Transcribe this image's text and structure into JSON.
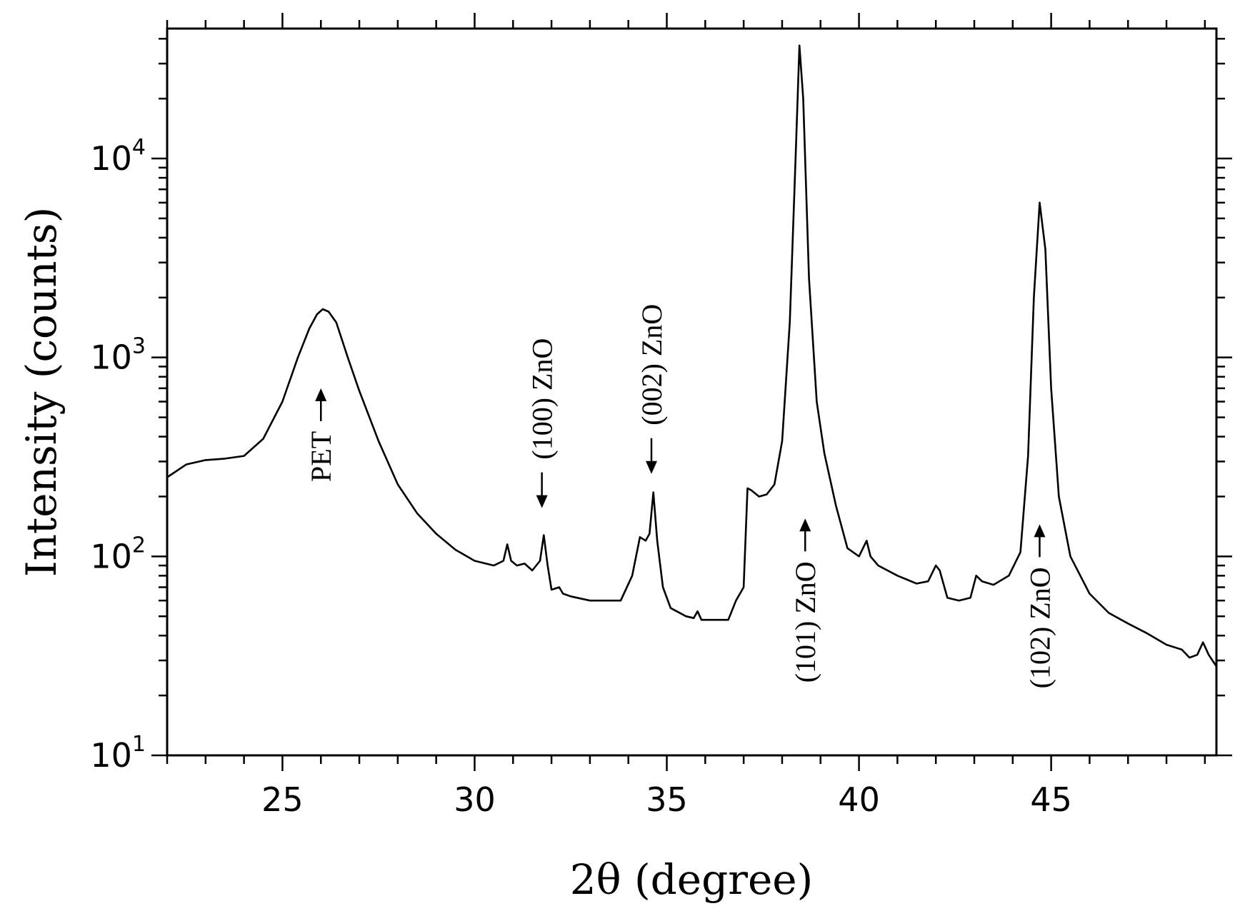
{
  "chart_data": {
    "type": "line",
    "xlabel": "2θ (degree)",
    "ylabel": "Intensity (counts)",
    "xlim": [
      22,
      49.3
    ],
    "ylim": [
      10,
      45000
    ],
    "yscale": "log",
    "grid": false,
    "x_ticks": [
      25,
      30,
      35,
      40,
      45
    ],
    "x_tick_labels": [
      "25",
      "30",
      "35",
      "40",
      "45"
    ],
    "y_ticks": [
      {
        "value": 10,
        "base": "10",
        "exp": "1"
      },
      {
        "value": 100,
        "base": "10",
        "exp": "2"
      },
      {
        "value": 1000,
        "base": "10",
        "exp": "3"
      },
      {
        "value": 10000,
        "base": "10",
        "exp": "4"
      }
    ],
    "line_color": "#000000",
    "series": [
      {
        "x": [
          22.0,
          22.5,
          23.0,
          23.5,
          24.0,
          24.5,
          25.0,
          25.4,
          25.7,
          25.9,
          26.05,
          26.2,
          26.4,
          26.7,
          27.0,
          27.5,
          28.0,
          28.5,
          29.0,
          29.5,
          30.0,
          30.5,
          30.75,
          30.85,
          30.95,
          31.1,
          31.3,
          31.5,
          31.7,
          31.8,
          31.9,
          32.0,
          32.2,
          32.3,
          32.5,
          33.0,
          33.5,
          33.8,
          34.1,
          34.3,
          34.45,
          34.55,
          34.65,
          34.75,
          34.9,
          35.1,
          35.5,
          35.7,
          35.8,
          35.9,
          36.2,
          36.6,
          36.8,
          37.0,
          37.1,
          37.2,
          37.4,
          37.6,
          37.8,
          38.0,
          38.2,
          38.35,
          38.45,
          38.55,
          38.7,
          38.9,
          39.1,
          39.4,
          39.7,
          40.0,
          40.2,
          40.3,
          40.5,
          41.0,
          41.5,
          41.8,
          42.0,
          42.1,
          42.3,
          42.6,
          42.9,
          43.05,
          43.2,
          43.5,
          43.9,
          44.2,
          44.4,
          44.55,
          44.7,
          44.85,
          45.0,
          45.2,
          45.5,
          46.0,
          46.5,
          47.0,
          47.5,
          48.0,
          48.4,
          48.6,
          48.8,
          48.95,
          49.1,
          49.3
        ],
        "values": [
          250,
          290,
          305,
          310,
          320,
          390,
          600,
          1000,
          1400,
          1650,
          1750,
          1700,
          1500,
          1000,
          680,
          380,
          230,
          165,
          130,
          108,
          95,
          90,
          95,
          115,
          95,
          90,
          92,
          85,
          95,
          128,
          90,
          68,
          70,
          65,
          63,
          60,
          60,
          60,
          80,
          125,
          120,
          130,
          210,
          120,
          70,
          55,
          50,
          49,
          53,
          48,
          48,
          48,
          60,
          70,
          220,
          215,
          200,
          205,
          230,
          380,
          1500,
          10000,
          37000,
          20000,
          2500,
          600,
          330,
          180,
          110,
          100,
          120,
          100,
          90,
          80,
          73,
          75,
          90,
          85,
          62,
          60,
          62,
          80,
          75,
          72,
          80,
          105,
          320,
          2000,
          6000,
          3500,
          700,
          200,
          100,
          65,
          52,
          46,
          41,
          36,
          34,
          31,
          32,
          37,
          32,
          28
        ]
      }
    ],
    "annotations": [
      {
        "text": "PET",
        "x": 26.0,
        "y": 700,
        "arrow": "up"
      },
      {
        "text": "(100) ZnO",
        "x": 31.75,
        "y": 175,
        "arrow": "down"
      },
      {
        "text": "(002) ZnO",
        "x": 34.6,
        "y": 260,
        "arrow": "down"
      },
      {
        "text": "(101) ZnO",
        "x": 38.6,
        "y": 155,
        "arrow": "up"
      },
      {
        "text": "(102) ZnO",
        "x": 44.7,
        "y": 145,
        "arrow": "up"
      }
    ]
  }
}
